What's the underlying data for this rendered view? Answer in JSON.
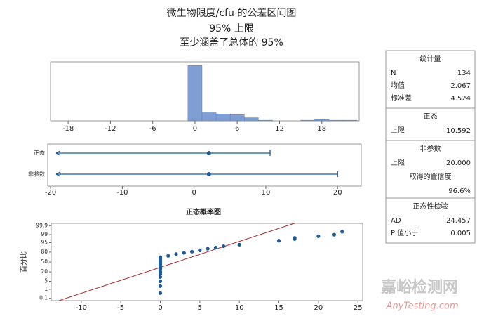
{
  "header": {
    "title": "微生物限度/cfu 的公差区间图",
    "line2": "95% 上限",
    "line3": "至少涵盖了总体的 95%"
  },
  "chart_data": [
    {
      "type": "histogram",
      "bins": [
        -1,
        1,
        3,
        5,
        7,
        9,
        11,
        13,
        15,
        17,
        19,
        21,
        23
      ],
      "values": [
        89,
        13,
        11,
        10,
        5,
        1,
        0,
        0,
        1,
        2,
        1,
        1
      ],
      "color": "#7f9fd4",
      "xlim": [
        -20.5,
        23.3
      ],
      "ylim": [
        0,
        95
      ],
      "xticks": [
        -18,
        -12,
        -6,
        0,
        6,
        12,
        18
      ]
    },
    {
      "type": "interval",
      "categories": [
        "正态",
        "非参数"
      ],
      "values": [
        2.067,
        2.067
      ],
      "upper": [
        10.592,
        20.0
      ],
      "color": "#1f5a96",
      "xlim": [
        -20.4,
        23.3
      ],
      "xticks": [
        -20,
        -10,
        0,
        10,
        20
      ]
    },
    {
      "type": "probability",
      "title": "正态概率图",
      "y_label": "百分比",
      "x": [
        0,
        0,
        0,
        0,
        0,
        0,
        0,
        0,
        0,
        0,
        0,
        0,
        0,
        0,
        0,
        1,
        2,
        3,
        4,
        5,
        6,
        7,
        8,
        10,
        15,
        17,
        17,
        20,
        22,
        23
      ],
      "values": [
        0.4,
        2,
        5,
        10,
        15,
        20,
        25,
        30,
        35,
        40,
        45,
        50,
        55,
        60,
        66,
        70,
        75,
        78,
        81,
        84,
        87,
        89,
        91,
        93,
        96.5,
        97.5,
        98,
        98.6,
        99,
        99.5
      ],
      "color": "#1f5a96",
      "fit": {
        "mean": 2.067,
        "sd": 4.524,
        "color": "#a52a2a"
      },
      "yscale": "probability",
      "xlim": [
        -13.8,
        25.6
      ],
      "ylim": [
        0.05,
        99.95
      ],
      "xticks": [
        -10,
        -5,
        0,
        5,
        10,
        15,
        20,
        25
      ],
      "yticks": [
        0.1,
        1,
        5,
        20,
        50,
        80,
        95,
        99,
        99.9
      ]
    }
  ],
  "stats_panel": {
    "sections": [
      {
        "title": "统计量",
        "rows": [
          [
            "N",
            "134"
          ],
          [
            "均值",
            "2.067"
          ],
          [
            "标准差",
            "4.524"
          ]
        ]
      },
      {
        "title": "正态",
        "rows": [
          [
            "上限",
            "10.592"
          ]
        ]
      },
      {
        "title": "非参数",
        "rows": [
          [
            "上限",
            "20.000"
          ]
        ],
        "extra": {
          "label": "取得的置信度",
          "value": "96.6%"
        }
      },
      {
        "title": "正态性检验",
        "rows": [
          [
            "AD",
            "24.457"
          ],
          [
            "P 值小于",
            "0.005"
          ]
        ]
      }
    ]
  },
  "watermark": {
    "text": "嘉峪检测网",
    "url": "AnyTesting.com"
  }
}
